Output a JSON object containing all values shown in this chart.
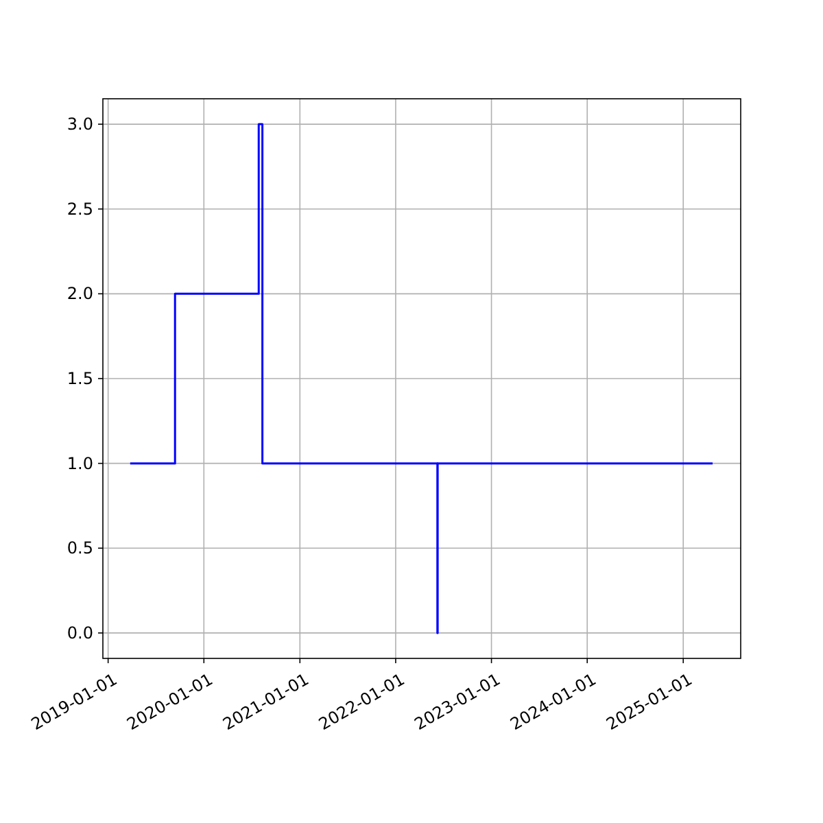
{
  "chart_data": {
    "type": "step",
    "x": [
      "2019-03-26",
      "2019-09-13",
      "2020-07-28",
      "2020-08-11",
      "2022-06-09",
      "2022-06-10",
      "2025-04-23"
    ],
    "series": [
      {
        "color": "#0000ff",
        "values": [
          1,
          2,
          3,
          1,
          0,
          1,
          1
        ]
      }
    ],
    "xlim": [
      "2018-12-12",
      "2025-08-08"
    ],
    "xticks": [
      {
        "value": "2019-01-01",
        "label": "2019-01-01"
      },
      {
        "value": "2020-01-01",
        "label": "2020-01-01"
      },
      {
        "value": "2021-01-01",
        "label": "2021-01-01"
      },
      {
        "value": "2022-01-01",
        "label": "2022-01-01"
      },
      {
        "value": "2023-01-01",
        "label": "2023-01-01"
      },
      {
        "value": "2024-01-01",
        "label": "2024-01-01"
      },
      {
        "value": "2025-01-01",
        "label": "2025-01-01"
      }
    ],
    "ylim": [
      -0.15,
      3.15
    ],
    "yticks": [
      {
        "value": 0,
        "label": "0.0"
      },
      {
        "value": 0.5,
        "label": "0.5"
      },
      {
        "value": 1,
        "label": "1.0"
      },
      {
        "value": 1.5,
        "label": "1.5"
      },
      {
        "value": 2,
        "label": "2.0"
      },
      {
        "value": 2.5,
        "label": "2.5"
      },
      {
        "value": 3,
        "label": "3.0"
      }
    ],
    "grid": true,
    "line_style": "solid"
  }
}
